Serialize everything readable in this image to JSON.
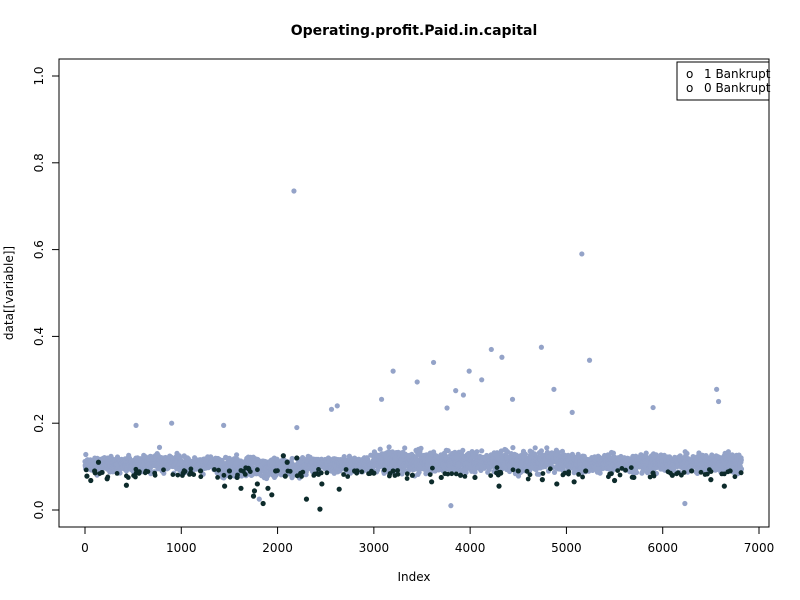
{
  "chart_data": {
    "type": "scatter",
    "title": "Operating.profit.Paid.in.capital",
    "xlabel": "Index",
    "ylabel": "data[[variable]]",
    "xlim": [
      0,
      7000
    ],
    "ylim": [
      0,
      1
    ],
    "x_ticks": [
      0,
      1000,
      2000,
      3000,
      4000,
      5000,
      6000,
      7000
    ],
    "y_ticks": [
      0.0,
      0.2,
      0.4,
      0.6,
      0.8,
      1.0
    ],
    "y_tick_labels": [
      "0.0",
      "0.2",
      "0.4",
      "0.6",
      "0.8",
      "1.0"
    ],
    "x_tick_labels": [
      "0",
      "1000",
      "2000",
      "3000",
      "4000",
      "5000",
      "6000",
      "7000"
    ],
    "grid": false,
    "legend_position": "top-right",
    "n_points": 6819,
    "series": [
      {
        "name": "1 Bankrupt",
        "color": "#0d2b2b",
        "points": [
          [
            20,
            0.078
          ],
          [
            60,
            0.068
          ],
          [
            100,
            0.09
          ],
          [
            140,
            0.11
          ],
          [
            230,
            0.072
          ],
          [
            430,
            0.057
          ],
          [
            560,
            0.085
          ],
          [
            1020,
            0.085
          ],
          [
            1200,
            0.09
          ],
          [
            1450,
            0.055
          ],
          [
            1500,
            0.09
          ],
          [
            1580,
            0.075
          ],
          [
            1620,
            0.05
          ],
          [
            1700,
            0.095
          ],
          [
            1750,
            0.032
          ],
          [
            1760,
            0.044
          ],
          [
            1790,
            0.06
          ],
          [
            1850,
            0.015
          ],
          [
            1900,
            0.05
          ],
          [
            1940,
            0.035
          ],
          [
            1980,
            0.09
          ],
          [
            2060,
            0.125
          ],
          [
            2080,
            0.078
          ],
          [
            2100,
            0.11
          ],
          [
            2200,
            0.12
          ],
          [
            2300,
            0.025
          ],
          [
            2440,
            0.002
          ],
          [
            2460,
            0.06
          ],
          [
            2640,
            0.048
          ],
          [
            2800,
            0.09
          ],
          [
            3000,
            0.085
          ],
          [
            3200,
            0.09
          ],
          [
            3400,
            0.08
          ],
          [
            3600,
            0.065
          ],
          [
            3700,
            0.075
          ],
          [
            3900,
            0.08
          ],
          [
            4050,
            0.075
          ],
          [
            4300,
            0.055
          ],
          [
            4500,
            0.09
          ],
          [
            4750,
            0.07
          ],
          [
            4900,
            0.06
          ],
          [
            5080,
            0.065
          ],
          [
            5200,
            0.09
          ],
          [
            5500,
            0.068
          ],
          [
            5700,
            0.075
          ],
          [
            5900,
            0.085
          ],
          [
            6100,
            0.08
          ],
          [
            6300,
            0.09
          ],
          [
            6500,
            0.07
          ],
          [
            6640,
            0.055
          ],
          [
            6700,
            0.09
          ]
        ]
      },
      {
        "name": "0 Bankrupt",
        "color": "#94a3c8",
        "outliers": [
          [
            2170,
            0.735
          ],
          [
            5160,
            0.59
          ],
          [
            5240,
            0.345
          ],
          [
            4740,
            0.375
          ],
          [
            4220,
            0.37
          ],
          [
            4330,
            0.352
          ],
          [
            3620,
            0.34
          ],
          [
            3200,
            0.32
          ],
          [
            3990,
            0.32
          ],
          [
            4120,
            0.3
          ],
          [
            3450,
            0.295
          ],
          [
            3850,
            0.275
          ],
          [
            4870,
            0.278
          ],
          [
            6560,
            0.278
          ],
          [
            3930,
            0.265
          ],
          [
            3080,
            0.255
          ],
          [
            2620,
            0.24
          ],
          [
            2560,
            0.232
          ],
          [
            4440,
            0.255
          ],
          [
            5060,
            0.225
          ],
          [
            3760,
            0.235
          ],
          [
            5900,
            0.236
          ],
          [
            6580,
            0.25
          ],
          [
            530,
            0.195
          ],
          [
            900,
            0.2
          ],
          [
            1440,
            0.195
          ],
          [
            2200,
            0.19
          ],
          [
            3800,
            0.01
          ],
          [
            6230,
            0.015
          ],
          [
            1810,
            0.025
          ]
        ]
      }
    ]
  }
}
